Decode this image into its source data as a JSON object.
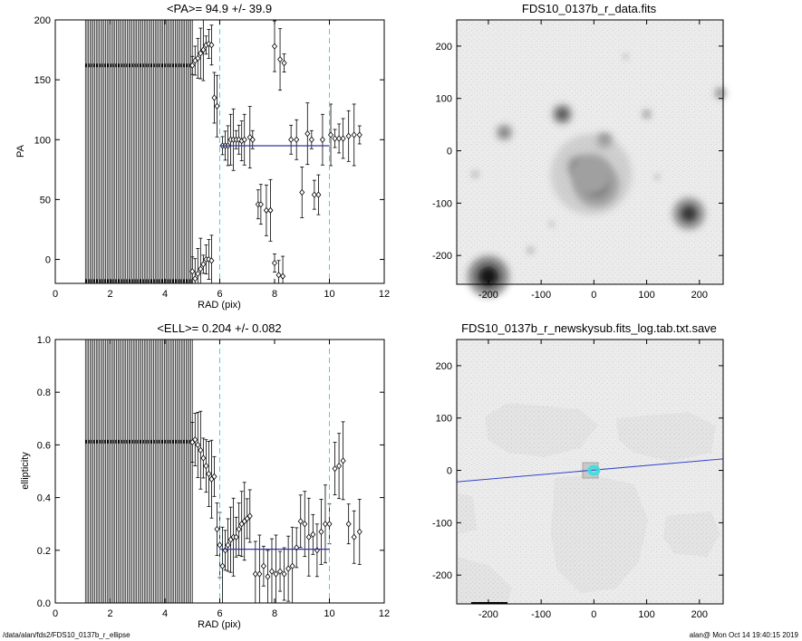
{
  "footer": {
    "path": "/data/alan/fds2/FDS10_0137b_r_ellipse",
    "stamp": "alan@  Mon Oct 14 19:40:15 2019"
  },
  "chart_data": [
    {
      "type": "scatter",
      "title": "<PA>=  94.9 +/-  39.9",
      "xlabel": "RAD (pix)",
      "ylabel": "PA",
      "xlim": [
        0,
        12
      ],
      "ylim": [
        -20,
        200
      ],
      "xticks": [
        0,
        2,
        4,
        6,
        8,
        10,
        12
      ],
      "yticks": [
        0,
        50,
        100,
        150,
        200
      ],
      "reference_lines": [
        6,
        10
      ],
      "mean_line": {
        "x": [
          6,
          10
        ],
        "y": 94.9
      },
      "points": [
        {
          "x": 5.0,
          "y": 162
        },
        {
          "x": 5.1,
          "y": 166
        },
        {
          "x": 5.2,
          "y": 168
        },
        {
          "x": 5.3,
          "y": 172
        },
        {
          "x": 5.4,
          "y": 175
        },
        {
          "x": 5.5,
          "y": 179
        },
        {
          "x": 5.6,
          "y": 180
        },
        {
          "x": 5.7,
          "y": 179
        },
        {
          "x": 5.8,
          "y": 135
        },
        {
          "x": 5.9,
          "y": 128
        },
        {
          "x": 6.1,
          "y": 95
        },
        {
          "x": 6.2,
          "y": 95
        },
        {
          "x": 6.3,
          "y": 95
        },
        {
          "x": 6.4,
          "y": 100
        },
        {
          "x": 6.5,
          "y": 100
        },
        {
          "x": 6.6,
          "y": 100
        },
        {
          "x": 6.7,
          "y": 100
        },
        {
          "x": 6.8,
          "y": 99
        },
        {
          "x": 6.9,
          "y": 100
        },
        {
          "x": 7.1,
          "y": 102
        },
        {
          "x": 7.2,
          "y": 100
        },
        {
          "x": 7.4,
          "y": 46
        },
        {
          "x": 7.5,
          "y": 46
        },
        {
          "x": 7.7,
          "y": 41
        },
        {
          "x": 7.85,
          "y": 41
        },
        {
          "x": 8.0,
          "y": -3
        },
        {
          "x": 8.15,
          "y": -13
        },
        {
          "x": 8.3,
          "y": -14
        },
        {
          "x": 8.0,
          "y": 178
        },
        {
          "x": 8.2,
          "y": 167
        },
        {
          "x": 8.35,
          "y": 164
        },
        {
          "x": 8.6,
          "y": 100
        },
        {
          "x": 8.8,
          "y": 100
        },
        {
          "x": 9.0,
          "y": 56
        },
        {
          "x": 9.2,
          "y": 105
        },
        {
          "x": 9.35,
          "y": 100
        },
        {
          "x": 9.45,
          "y": 54
        },
        {
          "x": 9.6,
          "y": 54
        },
        {
          "x": 9.75,
          "y": 100
        },
        {
          "x": 10.05,
          "y": 104
        },
        {
          "x": 10.2,
          "y": 101
        },
        {
          "x": 10.35,
          "y": 101
        },
        {
          "x": 10.5,
          "y": 101
        },
        {
          "x": 10.7,
          "y": 103
        },
        {
          "x": 10.9,
          "y": 104
        },
        {
          "x": 11.1,
          "y": 104
        },
        {
          "x": 5.0,
          "y": -10
        },
        {
          "x": 5.1,
          "y": -16
        },
        {
          "x": 5.2,
          "y": -12
        },
        {
          "x": 5.3,
          "y": -8
        },
        {
          "x": 5.4,
          "y": -4
        },
        {
          "x": 5.5,
          "y": 0
        },
        {
          "x": 5.6,
          "y": 0
        },
        {
          "x": 5.7,
          "y": -1
        }
      ],
      "flat_series": [
        {
          "x_start": 1.1,
          "x_end": 5.0,
          "y": 162
        },
        {
          "x_start": 1.1,
          "x_end": 5.0,
          "y": -18
        }
      ]
    },
    {
      "type": "heatmap",
      "title": "FDS10_0137b_r_data.fits",
      "xlim": [
        -260,
        245
      ],
      "ylim": [
        -255,
        250
      ],
      "xticks": [
        -200,
        -100,
        0,
        100,
        200
      ],
      "yticks": [
        -200,
        -100,
        0,
        100,
        200
      ],
      "sources": [
        {
          "x": -60,
          "y": 70,
          "r": 14,
          "v": 0.75
        },
        {
          "x": -170,
          "y": 35,
          "r": 12,
          "v": 0.55
        },
        {
          "x": 20,
          "y": 20,
          "r": 12,
          "v": 0.55
        },
        {
          "x": -30,
          "y": -30,
          "r": 15,
          "v": 0.85
        },
        {
          "x": 5,
          "y": -65,
          "r": 30,
          "v": 0.95
        },
        {
          "x": -5,
          "y": -45,
          "r": 55,
          "v": 0.35
        },
        {
          "x": 180,
          "y": -120,
          "r": 22,
          "v": 0.85
        },
        {
          "x": -200,
          "y": -240,
          "r": 28,
          "v": 1.0
        },
        {
          "x": 100,
          "y": 70,
          "r": 7,
          "v": 0.45
        },
        {
          "x": -225,
          "y": -45,
          "r": 6,
          "v": 0.35
        },
        {
          "x": 240,
          "y": 110,
          "r": 9,
          "v": 0.5
        },
        {
          "x": -120,
          "y": -190,
          "r": 6,
          "v": 0.35
        },
        {
          "x": 60,
          "y": 180,
          "r": 5,
          "v": 0.3
        },
        {
          "x": 120,
          "y": -50,
          "r": 5,
          "v": 0.3
        },
        {
          "x": -80,
          "y": -140,
          "r": 5,
          "v": 0.3
        }
      ]
    },
    {
      "type": "scatter",
      "title": "<ELL>= 0.204 +/-  0.082",
      "xlabel": "RAD (pix)",
      "ylabel": "ellipticity",
      "xlim": [
        0,
        12
      ],
      "ylim": [
        0,
        1
      ],
      "xticks": [
        0,
        2,
        4,
        6,
        8,
        10,
        12
      ],
      "yticks": [
        0.0,
        0.2,
        0.4,
        0.6,
        0.8,
        1.0
      ],
      "reference_lines": [
        6,
        10
      ],
      "mean_line": {
        "x": [
          6,
          10
        ],
        "y": 0.204
      },
      "points": [
        {
          "x": 5.0,
          "y": 0.61
        },
        {
          "x": 5.1,
          "y": 0.62
        },
        {
          "x": 5.2,
          "y": 0.6
        },
        {
          "x": 5.3,
          "y": 0.58
        },
        {
          "x": 5.4,
          "y": 0.55
        },
        {
          "x": 5.5,
          "y": 0.52
        },
        {
          "x": 5.6,
          "y": 0.49
        },
        {
          "x": 5.7,
          "y": 0.47
        },
        {
          "x": 5.8,
          "y": 0.48
        },
        {
          "x": 5.9,
          "y": 0.28
        },
        {
          "x": 6.0,
          "y": 0.22
        },
        {
          "x": 6.1,
          "y": 0.14
        },
        {
          "x": 6.2,
          "y": 0.2
        },
        {
          "x": 6.3,
          "y": 0.22
        },
        {
          "x": 6.4,
          "y": 0.24
        },
        {
          "x": 6.5,
          "y": 0.25
        },
        {
          "x": 6.6,
          "y": 0.25
        },
        {
          "x": 6.7,
          "y": 0.28
        },
        {
          "x": 6.8,
          "y": 0.3
        },
        {
          "x": 6.9,
          "y": 0.31
        },
        {
          "x": 7.0,
          "y": 0.32
        },
        {
          "x": 7.1,
          "y": 0.33
        },
        {
          "x": 7.3,
          "y": 0.11
        },
        {
          "x": 7.45,
          "y": 0.11
        },
        {
          "x": 7.6,
          "y": 0.14
        },
        {
          "x": 7.75,
          "y": 0.1
        },
        {
          "x": 7.9,
          "y": 0.12
        },
        {
          "x": 8.05,
          "y": 0.11
        },
        {
          "x": 8.2,
          "y": 0.12
        },
        {
          "x": 8.35,
          "y": 0.11
        },
        {
          "x": 8.5,
          "y": 0.13
        },
        {
          "x": 8.65,
          "y": 0.14
        },
        {
          "x": 8.8,
          "y": 0.21
        },
        {
          "x": 8.95,
          "y": 0.31
        },
        {
          "x": 9.1,
          "y": 0.3
        },
        {
          "x": 9.25,
          "y": 0.25
        },
        {
          "x": 9.4,
          "y": 0.26
        },
        {
          "x": 9.55,
          "y": 0.2
        },
        {
          "x": 9.7,
          "y": 0.27
        },
        {
          "x": 9.85,
          "y": 0.3
        },
        {
          "x": 10.0,
          "y": 0.3
        },
        {
          "x": 10.2,
          "y": 0.51
        },
        {
          "x": 10.35,
          "y": 0.52
        },
        {
          "x": 10.5,
          "y": 0.54
        },
        {
          "x": 10.7,
          "y": 0.3
        },
        {
          "x": 10.9,
          "y": 0.25
        },
        {
          "x": 11.1,
          "y": 0.27
        }
      ],
      "flat_series": [
        {
          "x_start": 1.1,
          "x_end": 5.0,
          "y": 0.612
        }
      ]
    },
    {
      "type": "heatmap",
      "title": "FDS10_0137b_r_newskysub.fits_log.tab.txt.save",
      "xlim": [
        -260,
        245
      ],
      "ylim": [
        -255,
        250
      ],
      "xticks": [
        -200,
        -100,
        0,
        100,
        200
      ],
      "yticks": [
        -200,
        -100,
        0,
        100,
        200
      ],
      "ellipse": {
        "x": 0,
        "y": 0,
        "rx": 10,
        "ry": 8
      },
      "major_axis_line": {
        "x": [
          -260,
          245
        ],
        "y": [
          -22,
          22
        ]
      }
    }
  ]
}
